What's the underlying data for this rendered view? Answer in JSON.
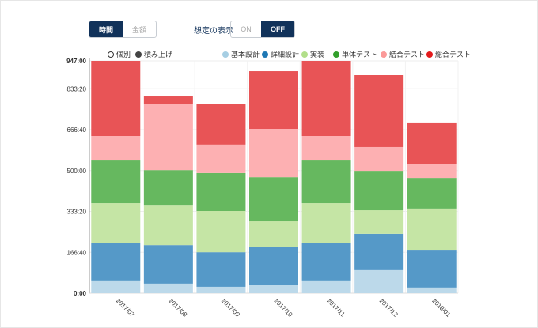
{
  "toggles": {
    "metric": [
      "時間",
      "金額"
    ],
    "metric_active": 0,
    "assumption_label": "想定の表示",
    "assumption": [
      "ON",
      "OFF"
    ],
    "assumption_active": 1
  },
  "mode_legend": [
    {
      "label": "個別",
      "filled": false
    },
    {
      "label": "積み上げ",
      "filled": true
    }
  ],
  "chart_data": {
    "type": "bar",
    "stacked": true,
    "categories": [
      "2017/07",
      "2017/08",
      "2017/09",
      "2017/10",
      "2017/11",
      "2017/12",
      "2018/01"
    ],
    "series": [
      {
        "name": "基本設計",
        "color": "#bcd9ea",
        "values": [
          52,
          39,
          26,
          35,
          52,
          97,
          23
        ]
      },
      {
        "name": "詳細設計",
        "color": "#5599c8",
        "values": [
          154,
          157,
          141,
          152,
          154,
          145,
          154
        ]
      },
      {
        "name": "実装",
        "color": "#c5e5a5",
        "values": [
          161,
          161,
          168,
          106,
          161,
          96,
          168
        ]
      },
      {
        "name": "単体テスト",
        "color": "#66b85f",
        "values": [
          174,
          145,
          155,
          180,
          174,
          161,
          125
        ]
      },
      {
        "name": "結合テスト",
        "color": "#fdb0b2",
        "values": [
          100,
          271,
          116,
          197,
          100,
          97,
          58
        ]
      },
      {
        "name": "総合テスト",
        "color": "#e85456",
        "values": [
          306,
          29,
          164,
          235,
          306,
          293,
          168
        ]
      }
    ],
    "legend_colors": [
      "#a6cee3",
      "#1f78b4",
      "#b2df8a",
      "#33a02c",
      "#fb9a99",
      "#e31a1c"
    ],
    "ylim": [
      0,
      947
    ],
    "yticks": [
      "0:00",
      "166:40",
      "333:20",
      "500:00",
      "666:40",
      "833:20",
      "947:00"
    ],
    "ytick_values": [
      0,
      166.67,
      333.33,
      500,
      666.67,
      833.33,
      947
    ],
    "unit": "hours",
    "legend_position": "top-right"
  }
}
